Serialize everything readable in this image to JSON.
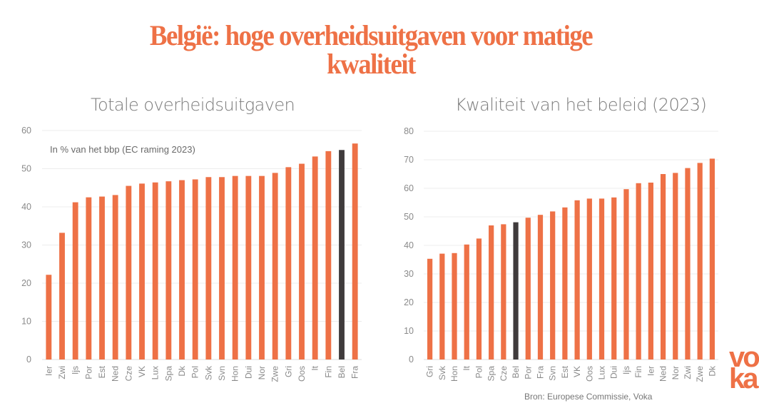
{
  "header": {
    "title_line1": "België: hoge overheidsuitgaven voor matige",
    "title_line2": "kwaliteit"
  },
  "footer": {
    "source": "Bron: Europese Commissie, Voka",
    "logo_text": "voka"
  },
  "colors": {
    "accent": "#ee7146",
    "highlight": "#3f3b3c",
    "grid": "#ececec"
  },
  "chart_data": [
    {
      "type": "bar",
      "title": "Totale overheidsuitgaven",
      "annotation": "In % van het bbp (EC raming 2023)",
      "xlabel": "",
      "ylabel": "",
      "ylim": [
        0,
        60
      ],
      "yticks": [
        0,
        10,
        20,
        30,
        40,
        50,
        60
      ],
      "grid": true,
      "highlight": "Bel",
      "categories": [
        "Ier",
        "Zwi",
        "Ijs",
        "Por",
        "Est",
        "Ned",
        "Cze",
        "VK",
        "Lux",
        "Spa",
        "Dk",
        "Pol",
        "Svk",
        "Svn",
        "Hon",
        "Dui",
        "Nor",
        "Zwe",
        "Gri",
        "Oos",
        "It",
        "Fin",
        "Bel",
        "Fra"
      ],
      "values": [
        22.2,
        33.2,
        41.2,
        42.5,
        42.7,
        43.1,
        45.5,
        46.1,
        46.4,
        46.7,
        47.0,
        47.2,
        47.8,
        47.8,
        48.1,
        48.1,
        48.1,
        48.9,
        50.4,
        51.3,
        53.2,
        54.6,
        54.9,
        56.6
      ]
    },
    {
      "type": "bar",
      "title": "Kwaliteit van het beleid (2023)",
      "xlabel": "",
      "ylabel": "",
      "ylim": [
        0,
        80
      ],
      "yticks": [
        0,
        10,
        20,
        30,
        40,
        50,
        60,
        70,
        80
      ],
      "grid": true,
      "highlight": "Bel",
      "categories": [
        "Gri",
        "Svk",
        "Hon",
        "It",
        "Pol",
        "Spa",
        "Cze",
        "Bel",
        "Por",
        "Fra",
        "Svn",
        "Est",
        "VK",
        "Oos",
        "Lux",
        "Dui",
        "Ijs",
        "Fin",
        "Ier",
        "Ned",
        "Nor",
        "Zwi",
        "Zwe",
        "Dk"
      ],
      "values": [
        35.3,
        37.1,
        37.3,
        40.3,
        42.4,
        47.0,
        47.4,
        48.1,
        49.7,
        50.7,
        51.9,
        53.3,
        55.8,
        56.4,
        56.4,
        56.8,
        59.7,
        61.8,
        62.0,
        65.0,
        65.4,
        67.1,
        68.9,
        70.4
      ]
    }
  ]
}
